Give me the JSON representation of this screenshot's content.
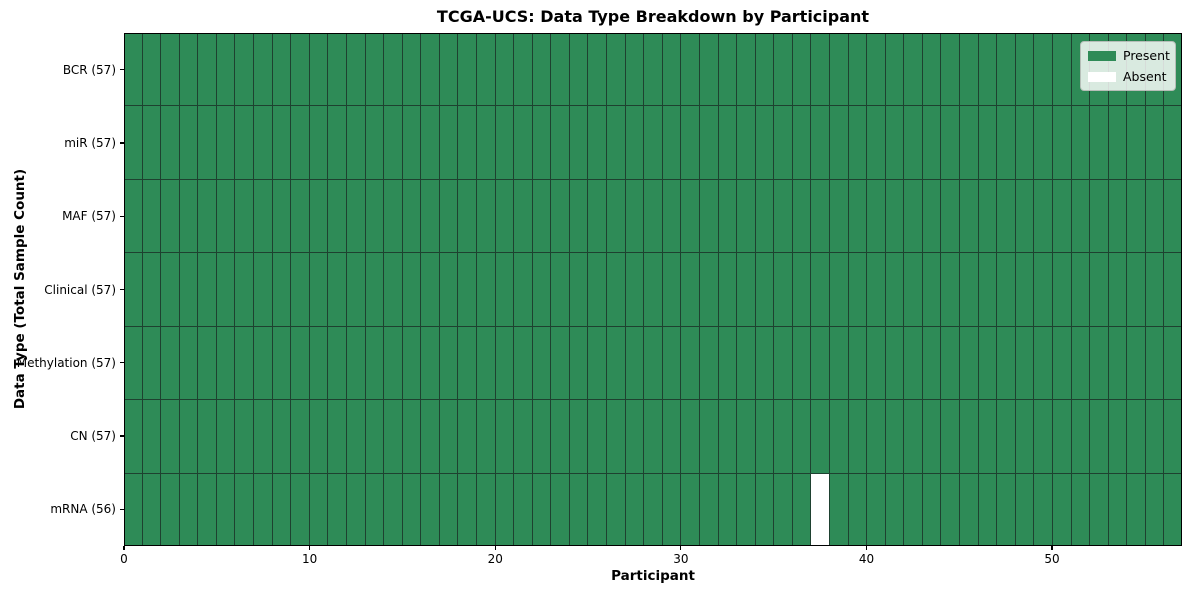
{
  "chart_data": {
    "type": "heatmap",
    "title": "TCGA-UCS: Data Type Breakdown by Participant",
    "xlabel": "Participant",
    "ylabel": "Data Type (Total Sample Count)",
    "rows": [
      "BCR (57)",
      "miR (57)",
      "MAF (57)",
      "Clinical (57)",
      "Methylation (57)",
      "CN (57)",
      "mRNA (56)"
    ],
    "n_participants": 57,
    "xlim": [
      0,
      57
    ],
    "x_ticks": [
      0,
      10,
      20,
      30,
      40,
      50
    ],
    "absent_cells": [
      {
        "row_index": 6,
        "row_label": "mRNA (56)",
        "participant_index": 37
      }
    ],
    "legend": {
      "position": "upper right",
      "entries": [
        {
          "label": "Present",
          "color": "#2e8b57"
        },
        {
          "label": "Absent",
          "color": "#ffffff"
        }
      ]
    },
    "colors": {
      "present": "#2e8b57",
      "absent": "#ffffff",
      "cell_edge": "#1e4130",
      "spine": "#000000",
      "background": "#ffffff"
    }
  }
}
